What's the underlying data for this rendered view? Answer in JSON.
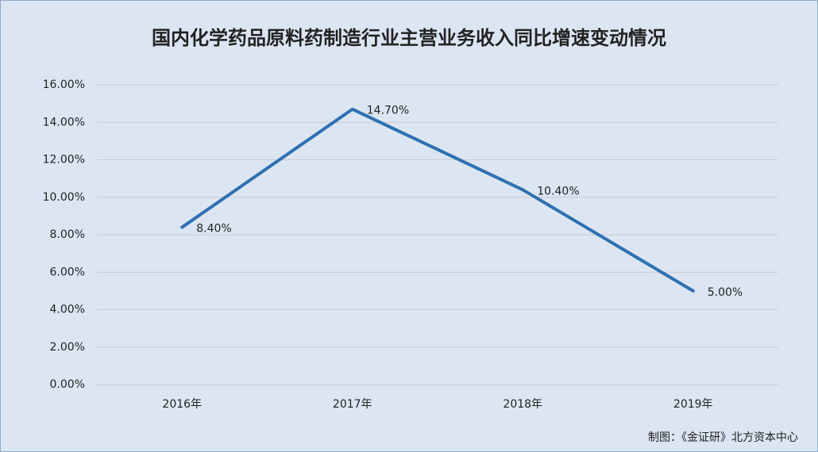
{
  "chart_data": {
    "type": "line",
    "title": "国内化学药品原料药制造行业主营业务收入同比增速变动情况",
    "categories": [
      "2016年",
      "2017年",
      "2018年",
      "2019年"
    ],
    "series": [
      {
        "color": "#2e71b1",
        "values": [
          8.4,
          14.7,
          10.4,
          5.0
        ],
        "value_labels": [
          "8.40%",
          "14.70%",
          "10.40%",
          "5.00%"
        ]
      }
    ],
    "ylim": [
      0,
      16
    ],
    "yticks": [
      {
        "value": 0,
        "label": "0.00%"
      },
      {
        "value": 2,
        "label": "2.00%"
      },
      {
        "value": 4,
        "label": "4.00%"
      },
      {
        "value": 6,
        "label": "6.00%"
      },
      {
        "value": 8,
        "label": "8.00%"
      },
      {
        "value": 10,
        "label": "10.00%"
      },
      {
        "value": 12,
        "label": "12.00%"
      },
      {
        "value": 14,
        "label": "14.00%"
      },
      {
        "value": 16,
        "label": "16.00%"
      }
    ],
    "grid": true,
    "source": "制图：《金证研》北方资本中心"
  }
}
